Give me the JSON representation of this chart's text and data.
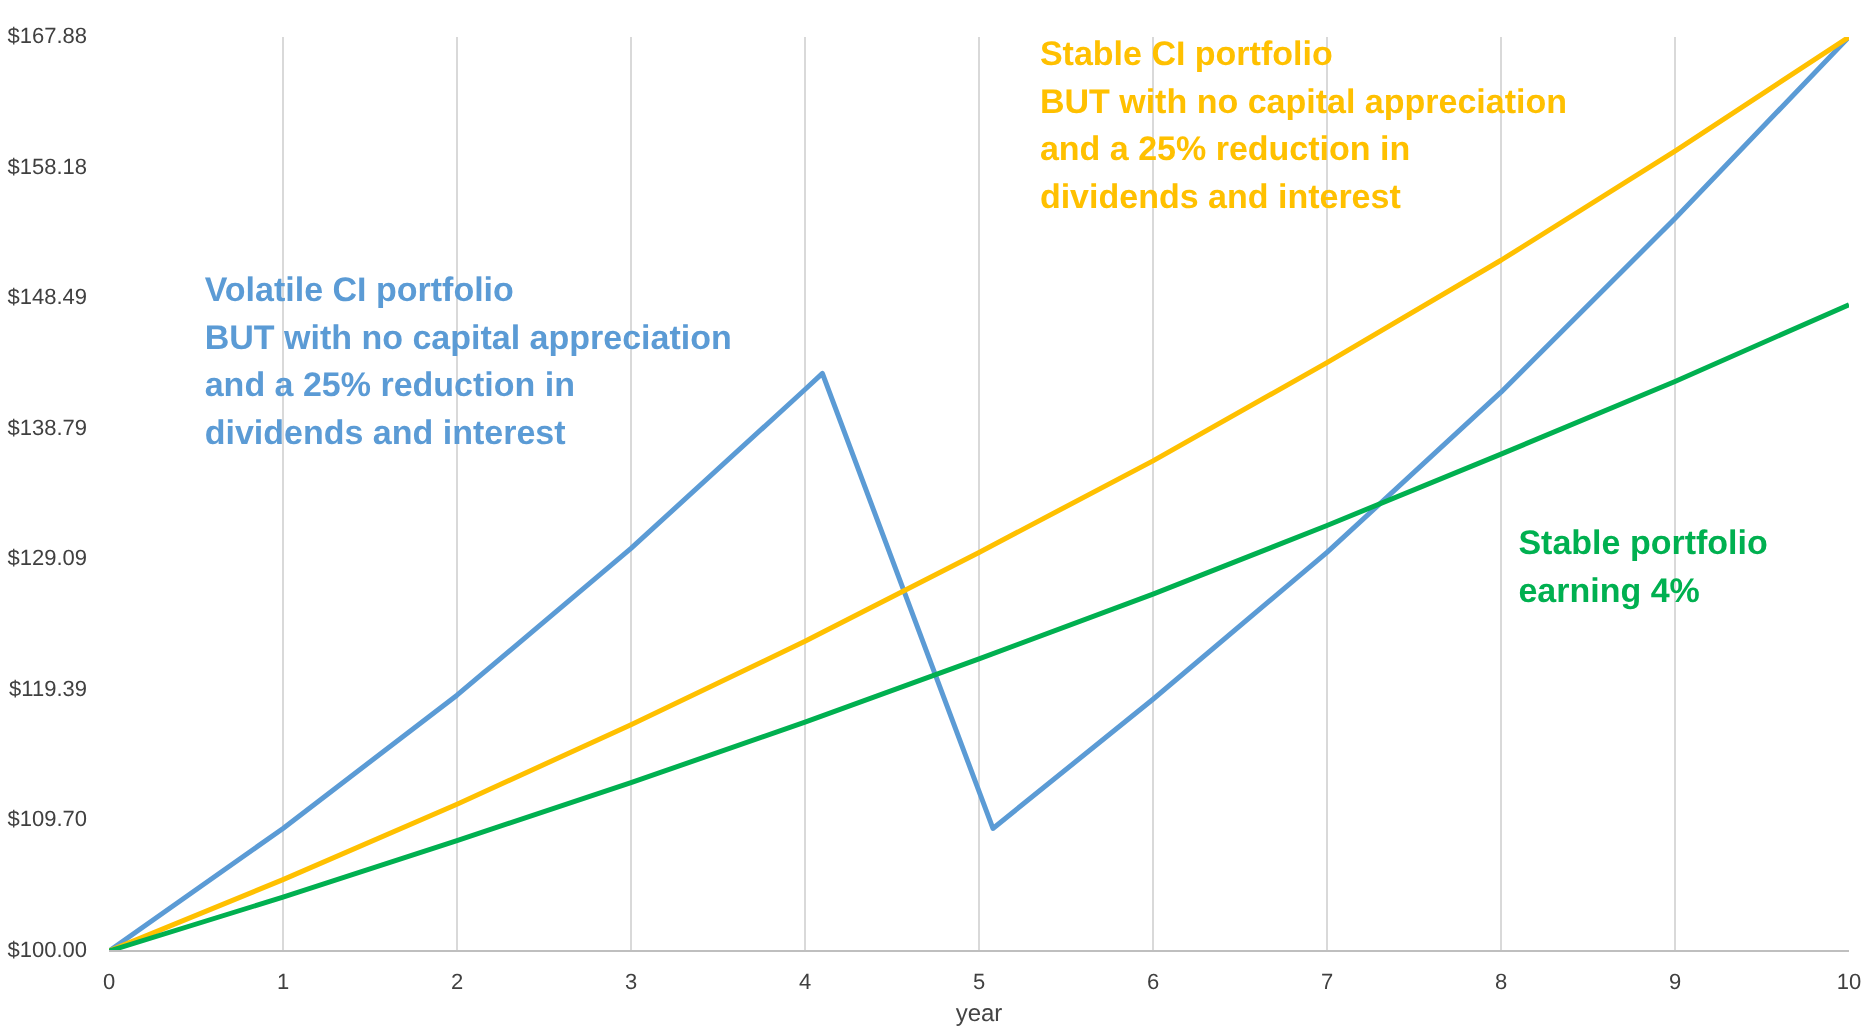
{
  "chart_data": {
    "type": "line",
    "xlabel": "year",
    "xlim": [
      0,
      10
    ],
    "xticks": [
      0,
      1,
      2,
      3,
      4,
      5,
      6,
      7,
      8,
      9,
      10
    ],
    "ylim": [
      100,
      167.88
    ],
    "yticks": [
      {
        "value": 100,
        "label": "$100.00"
      },
      {
        "value": 109.7,
        "label": "$109.70"
      },
      {
        "value": 119.39,
        "label": "$119.39"
      },
      {
        "value": 129.09,
        "label": "$129.09"
      },
      {
        "value": 138.79,
        "label": "$138.79"
      },
      {
        "value": 148.49,
        "label": "$148.49"
      },
      {
        "value": 158.18,
        "label": "$158.18"
      },
      {
        "value": 167.88,
        "label": "$167.88"
      }
    ],
    "grid": "x",
    "legend": false,
    "marker": "none",
    "line_style": "solid",
    "series": [
      {
        "name": "Volatile CI portfolio\nBUT with no capital appreciation\nand a 25% reduction in\ndividends and interest",
        "color": "#5b9bd5",
        "x": [
          0,
          1,
          2,
          3,
          4,
          4.1,
          5.08,
          6,
          7,
          8,
          9,
          10
        ],
        "values": [
          100,
          109.1,
          119.0,
          129.9,
          141.7,
          142.9,
          109.1,
          118.7,
          129.6,
          141.5,
          154.4,
          167.88
        ]
      },
      {
        "name": "Stable CI portfolio\nBUT with no capital appreciation\nand a 25% reduction in\ndividends and interest",
        "color": "#ffc000",
        "x": [
          0,
          1,
          2,
          3,
          4,
          5,
          6,
          7,
          8,
          9,
          10
        ],
        "values": [
          100,
          105.3,
          110.9,
          116.8,
          123.0,
          129.6,
          136.4,
          143.7,
          151.3,
          159.4,
          167.88
        ]
      },
      {
        "name": "Stable portfolio\nearning 4%",
        "color": "#00b050",
        "x": [
          0,
          1,
          2,
          3,
          4,
          5,
          6,
          7,
          8,
          9,
          10
        ],
        "values": [
          100,
          104.0,
          108.2,
          112.5,
          117.0,
          121.7,
          126.5,
          131.6,
          136.9,
          142.3,
          148.0
        ]
      }
    ]
  }
}
